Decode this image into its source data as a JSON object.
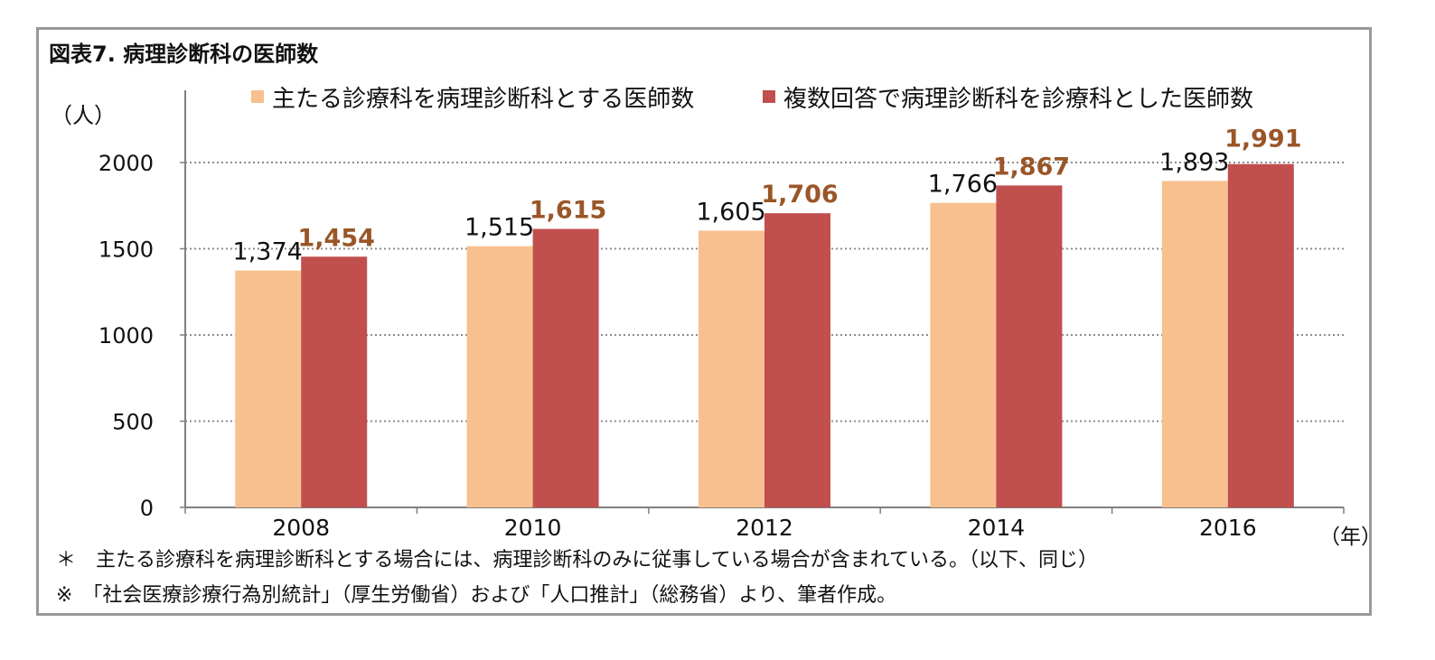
{
  "title": "図表7. 病理診断科の医師数",
  "chart_data": {
    "type": "bar",
    "categories": [
      "2008",
      "2010",
      "2012",
      "2014",
      "2016"
    ],
    "series": [
      {
        "name": "主たる診療科を病理診断科とする医師数",
        "values": [
          1374,
          1515,
          1605,
          1766,
          1893
        ],
        "labels": [
          "1,374",
          "1,515",
          "1,605",
          "1,766",
          "1,893"
        ],
        "color": "#F8C08F",
        "label_color": "#111111"
      },
      {
        "name": "複数回答で病理診断科を診療科とした医師数",
        "values": [
          1454,
          1615,
          1706,
          1867,
          1991
        ],
        "labels": [
          "1,454",
          "1,615",
          "1,706",
          "1,867",
          "1,991"
        ],
        "color": "#C04F4E",
        "label_color": "#9A5628"
      }
    ],
    "ylabel": "（人）",
    "xlabel": "（年）",
    "ylim": [
      0,
      2000
    ],
    "yticks": [
      "0",
      "500",
      "1000",
      "1500",
      "2000"
    ],
    "grid": true,
    "legend_position": "top"
  },
  "notes": [
    "＊　主たる診療科を病理診断科とする場合には、病理診断科のみに従事している場合が含まれている。（以下、同じ）",
    "※　「社会医療診療行為別統計」（厚生労働省）および「人口推計」（総務省）より、筆者作成。"
  ]
}
